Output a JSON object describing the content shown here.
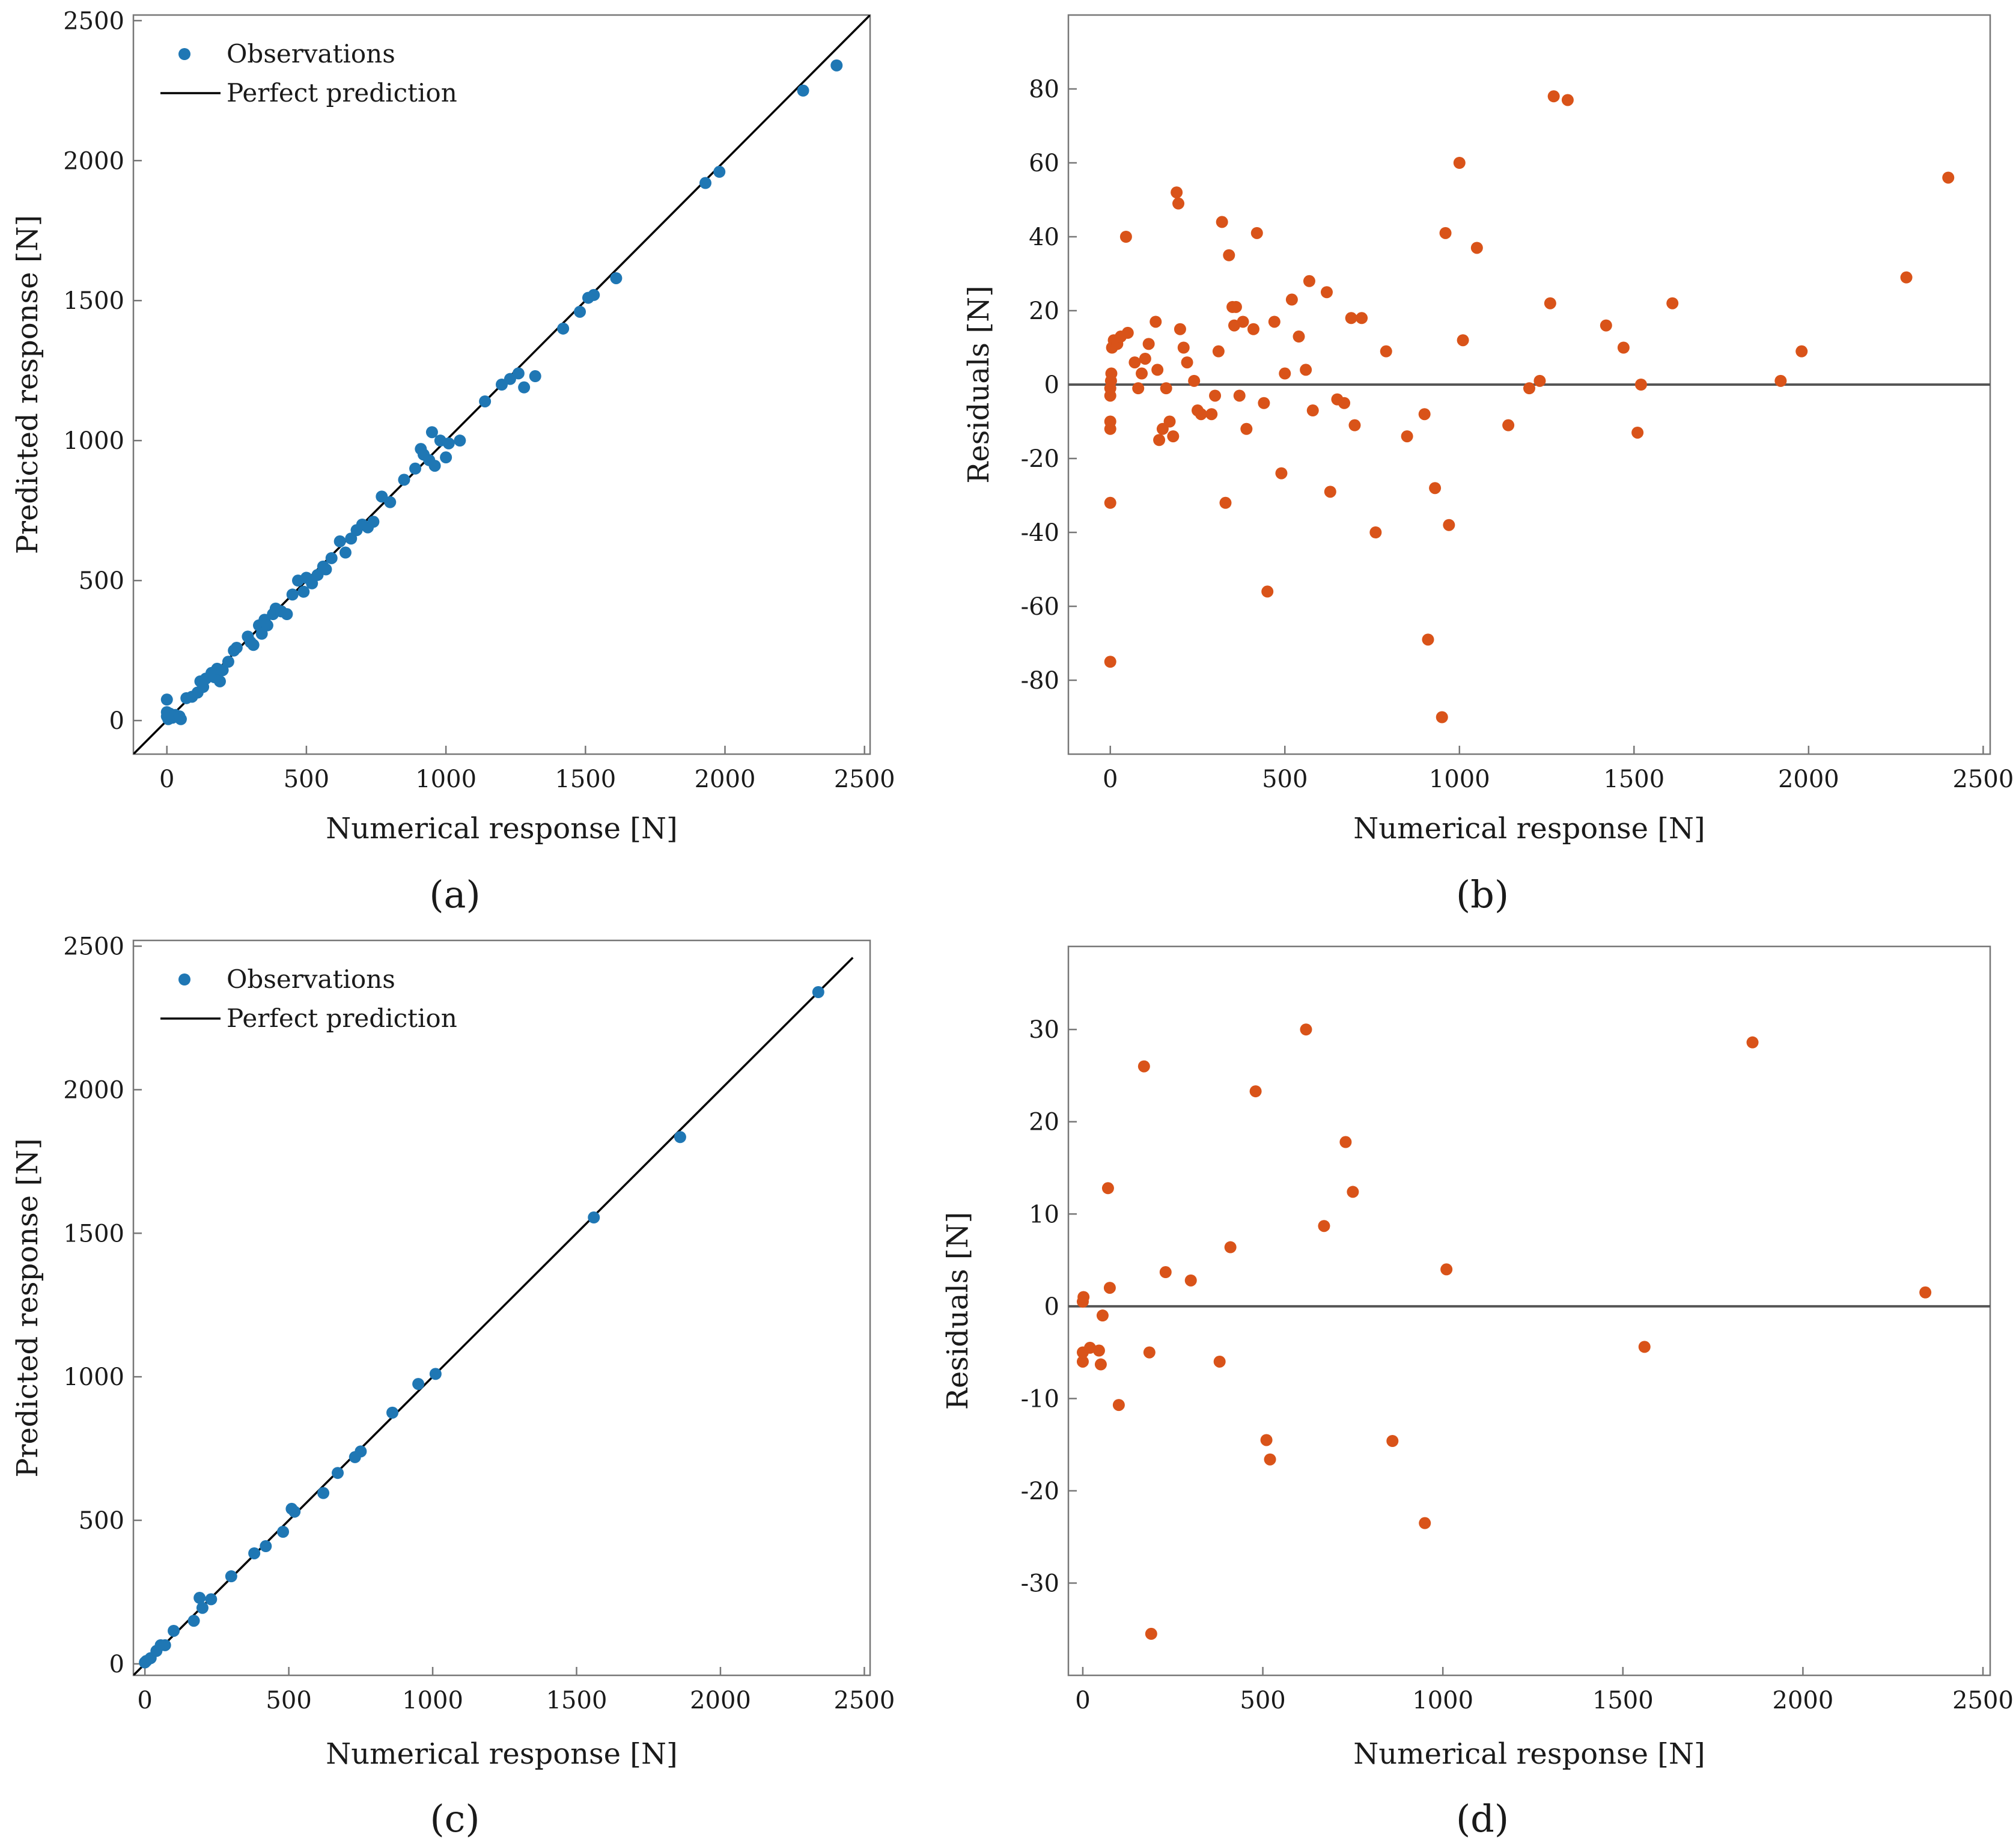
{
  "colors": {
    "blue": "#1f77b4",
    "orange": "#d95319",
    "line": "#000000",
    "zero_line": "#555555",
    "axis": "#777777"
  },
  "chart_data": [
    {
      "id": "a",
      "type": "scatter",
      "caption": "(a)",
      "xlabel": "Numerical response [N]",
      "ylabel": "Predicted response [N]",
      "xlim": [
        -120,
        2520
      ],
      "ylim": [
        -120,
        2520
      ],
      "xticks": [
        0,
        500,
        1000,
        1500,
        2000,
        2500
      ],
      "yticks": [
        0,
        500,
        1000,
        1500,
        2000,
        2500
      ],
      "legend": {
        "position": "top-left",
        "entries": [
          "Observations",
          "Perfect prediction"
        ]
      },
      "reference_line": "identity",
      "series": [
        {
          "name": "Observations",
          "points": [
            [
              0,
              75
            ],
            [
              0,
              30
            ],
            [
              0,
              15
            ],
            [
              5,
              5
            ],
            [
              10,
              25
            ],
            [
              20,
              10
            ],
            [
              30,
              20
            ],
            [
              45,
              15
            ],
            [
              50,
              5
            ],
            [
              70,
              80
            ],
            [
              90,
              85
            ],
            [
              110,
              100
            ],
            [
              120,
              140
            ],
            [
              130,
              120
            ],
            [
              140,
              150
            ],
            [
              160,
              170
            ],
            [
              170,
              155
            ],
            [
              180,
              185
            ],
            [
              190,
              140
            ],
            [
              200,
              180
            ],
            [
              220,
              210
            ],
            [
              240,
              250
            ],
            [
              250,
              260
            ],
            [
              290,
              300
            ],
            [
              300,
              280
            ],
            [
              310,
              270
            ],
            [
              330,
              340
            ],
            [
              340,
              310
            ],
            [
              350,
              360
            ],
            [
              360,
              340
            ],
            [
              380,
              380
            ],
            [
              390,
              400
            ],
            [
              410,
              390
            ],
            [
              430,
              380
            ],
            [
              450,
              450
            ],
            [
              470,
              500
            ],
            [
              490,
              460
            ],
            [
              500,
              510
            ],
            [
              520,
              490
            ],
            [
              540,
              520
            ],
            [
              560,
              550
            ],
            [
              570,
              540
            ],
            [
              590,
              580
            ],
            [
              620,
              640
            ],
            [
              640,
              600
            ],
            [
              660,
              650
            ],
            [
              680,
              680
            ],
            [
              700,
              700
            ],
            [
              720,
              690
            ],
            [
              740,
              710
            ],
            [
              770,
              800
            ],
            [
              800,
              780
            ],
            [
              850,
              860
            ],
            [
              890,
              900
            ],
            [
              910,
              970
            ],
            [
              920,
              950
            ],
            [
              940,
              930
            ],
            [
              950,
              1030
            ],
            [
              960,
              910
            ],
            [
              980,
              1000
            ],
            [
              1000,
              940
            ],
            [
              1010,
              990
            ],
            [
              1050,
              1000
            ],
            [
              1140,
              1140
            ],
            [
              1200,
              1200
            ],
            [
              1230,
              1220
            ],
            [
              1260,
              1240
            ],
            [
              1280,
              1190
            ],
            [
              1320,
              1230
            ],
            [
              1420,
              1400
            ],
            [
              1480,
              1460
            ],
            [
              1510,
              1510
            ],
            [
              1530,
              1520
            ],
            [
              1610,
              1580
            ],
            [
              1930,
              1920
            ],
            [
              1980,
              1960
            ],
            [
              2280,
              2250
            ],
            [
              2400,
              2340
            ]
          ]
        }
      ]
    },
    {
      "id": "b",
      "type": "scatter",
      "caption": "(b)",
      "xlabel": "Numerical response [N]",
      "ylabel": "Residuals [N]",
      "xlim": [
        -120,
        2520
      ],
      "ylim": [
        -100,
        100
      ],
      "xticks": [
        0,
        500,
        1000,
        1500,
        2000,
        2500
      ],
      "yticks": [
        -80,
        -60,
        -40,
        -20,
        0,
        20,
        40,
        60,
        80
      ],
      "reference_line": "zero",
      "series": [
        {
          "name": "Residuals",
          "points": [
            [
              0,
              -75
            ],
            [
              0,
              -32
            ],
            [
              0,
              -12
            ],
            [
              0,
              -10
            ],
            [
              0,
              -3
            ],
            [
              0,
              -1
            ],
            [
              2,
              1
            ],
            [
              3,
              3
            ],
            [
              5,
              10
            ],
            [
              10,
              12
            ],
            [
              20,
              11
            ],
            [
              30,
              13
            ],
            [
              45,
              40
            ],
            [
              50,
              14
            ],
            [
              70,
              6
            ],
            [
              80,
              -1
            ],
            [
              90,
              3
            ],
            [
              100,
              7
            ],
            [
              110,
              11
            ],
            [
              130,
              17
            ],
            [
              135,
              4
            ],
            [
              140,
              -15
            ],
            [
              150,
              -12
            ],
            [
              160,
              -1
            ],
            [
              170,
              -10
            ],
            [
              180,
              -14
            ],
            [
              190,
              52
            ],
            [
              195,
              49
            ],
            [
              200,
              15
            ],
            [
              210,
              10
            ],
            [
              220,
              6
            ],
            [
              240,
              1
            ],
            [
              250,
              -7
            ],
            [
              260,
              -8
            ],
            [
              290,
              -8
            ],
            [
              300,
              -3
            ],
            [
              310,
              9
            ],
            [
              320,
              44
            ],
            [
              330,
              -32
            ],
            [
              340,
              35
            ],
            [
              350,
              21
            ],
            [
              355,
              16
            ],
            [
              360,
              21
            ],
            [
              370,
              -3
            ],
            [
              380,
              17
            ],
            [
              390,
              -12
            ],
            [
              410,
              15
            ],
            [
              420,
              41
            ],
            [
              440,
              -5
            ],
            [
              450,
              -56
            ],
            [
              470,
              17
            ],
            [
              490,
              -24
            ],
            [
              500,
              3
            ],
            [
              520,
              23
            ],
            [
              540,
              13
            ],
            [
              560,
              4
            ],
            [
              570,
              28
            ],
            [
              580,
              -7
            ],
            [
              620,
              25
            ],
            [
              630,
              -29
            ],
            [
              650,
              -4
            ],
            [
              670,
              -5
            ],
            [
              690,
              18
            ],
            [
              700,
              -11
            ],
            [
              720,
              18
            ],
            [
              760,
              -40
            ],
            [
              790,
              9
            ],
            [
              850,
              -14
            ],
            [
              900,
              -8
            ],
            [
              910,
              -69
            ],
            [
              930,
              -28
            ],
            [
              950,
              -90
            ],
            [
              960,
              41
            ],
            [
              970,
              -38
            ],
            [
              1000,
              60
            ],
            [
              1010,
              12
            ],
            [
              1050,
              37
            ],
            [
              1140,
              -11
            ],
            [
              1200,
              -1
            ],
            [
              1230,
              1
            ],
            [
              1260,
              22
            ],
            [
              1270,
              78
            ],
            [
              1310,
              77
            ],
            [
              1420,
              16
            ],
            [
              1470,
              10
            ],
            [
              1510,
              -13
            ],
            [
              1520,
              0
            ],
            [
              1610,
              22
            ],
            [
              1920,
              1
            ],
            [
              1980,
              9
            ],
            [
              2280,
              29
            ],
            [
              2400,
              56
            ]
          ]
        }
      ]
    },
    {
      "id": "c",
      "type": "scatter",
      "caption": "(c)",
      "xlabel": "Numerical response [N]",
      "ylabel": "Predicted response [N]",
      "xlim": [
        -40,
        2520
      ],
      "ylim": [
        -40,
        2520
      ],
      "xticks": [
        0,
        500,
        1000,
        1500,
        2000,
        2500
      ],
      "yticks": [
        0,
        500,
        1000,
        1500,
        2000,
        2500
      ],
      "legend": {
        "position": "top-left",
        "entries": [
          "Observations",
          "Perfect prediction"
        ]
      },
      "reference_line": "identity",
      "series": [
        {
          "name": "Observations",
          "points": [
            [
              0,
              5
            ],
            [
              5,
              10
            ],
            [
              20,
              20
            ],
            [
              40,
              45
            ],
            [
              55,
              65
            ],
            [
              70,
              65
            ],
            [
              100,
              115
            ],
            [
              170,
              150
            ],
            [
              190,
              230
            ],
            [
              200,
              195
            ],
            [
              230,
              225
            ],
            [
              300,
              305
            ],
            [
              380,
              385
            ],
            [
              420,
              410
            ],
            [
              480,
              460
            ],
            [
              510,
              540
            ],
            [
              520,
              530
            ],
            [
              620,
              595
            ],
            [
              670,
              665
            ],
            [
              730,
              720
            ],
            [
              750,
              740
            ],
            [
              860,
              875
            ],
            [
              950,
              975
            ],
            [
              1010,
              1010
            ],
            [
              1560,
              1555
            ],
            [
              1860,
              1835
            ],
            [
              2340,
              2340
            ]
          ]
        }
      ]
    },
    {
      "id": "d",
      "type": "scatter",
      "caption": "(d)",
      "xlabel": "Numerical response [N]",
      "ylabel": "Residuals [N]",
      "xlim": [
        -40,
        2520
      ],
      "ylim": [
        -40,
        39
      ],
      "xticks": [
        0,
        500,
        1000,
        1500,
        2000,
        2500
      ],
      "yticks": [
        -30,
        -20,
        -10,
        0,
        10,
        20,
        30
      ],
      "reference_line": "zero",
      "series": [
        {
          "name": "Residuals",
          "points": [
            [
              0,
              -6
            ],
            [
              0,
              -5
            ],
            [
              0,
              0.5
            ],
            [
              2,
              1
            ],
            [
              20,
              -4.5
            ],
            [
              45,
              -4.8
            ],
            [
              50,
              -6.3
            ],
            [
              55,
              -1
            ],
            [
              70,
              12.8
            ],
            [
              75,
              2
            ],
            [
              100,
              -10.7
            ],
            [
              170,
              26
            ],
            [
              185,
              -5
            ],
            [
              190,
              -35.5
            ],
            [
              230,
              3.7
            ],
            [
              300,
              2.8
            ],
            [
              380,
              -6
            ],
            [
              410,
              6.4
            ],
            [
              480,
              23.3
            ],
            [
              510,
              -14.5
            ],
            [
              520,
              -16.6
            ],
            [
              620,
              30
            ],
            [
              670,
              8.7
            ],
            [
              730,
              17.8
            ],
            [
              750,
              12.4
            ],
            [
              860,
              -14.6
            ],
            [
              950,
              -23.5
            ],
            [
              1010,
              4
            ],
            [
              1560,
              -4.4
            ],
            [
              1860,
              28.6
            ],
            [
              2340,
              1.5
            ]
          ]
        }
      ]
    }
  ]
}
